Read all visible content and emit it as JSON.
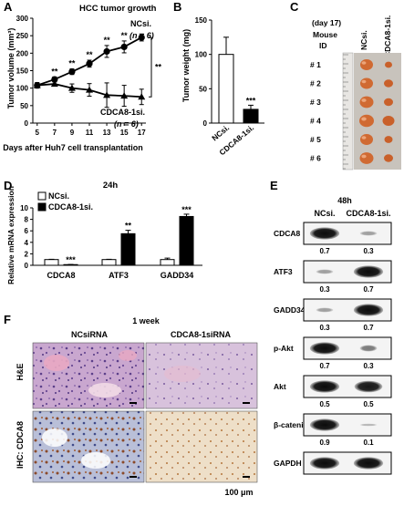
{
  "panels": {
    "A": {
      "letter": "A",
      "chart_data": {
        "type": "line",
        "title": "HCC tumor growth",
        "xlabel": "Days after Huh7 cell transplantation",
        "ylabel": "Tumor volume (mm³)",
        "xlim": [
          4.5,
          17.5
        ],
        "ylim": [
          0,
          300
        ],
        "x_ticks": [
          "5",
          "7",
          "9",
          "11",
          "13",
          "15",
          "17"
        ],
        "y_ticks": [
          "0",
          "50",
          "100",
          "150",
          "200",
          "250",
          "300"
        ],
        "series": [
          {
            "name": "NCsi.",
            "n_label": "(n = 6)",
            "marker": "circle",
            "x": [
              5,
              7,
              9,
              11,
              13,
              15,
              17
            ],
            "y": [
              108,
              125,
              147,
              170,
              205,
              218,
              245
            ],
            "err": [
              5,
              7,
              8,
              10,
              17,
              17,
              10
            ]
          },
          {
            "name": "CDCA8-1si.",
            "n_label": "(n = 6)",
            "marker": "triangle",
            "x": [
              5,
              7,
              9,
              11,
              13,
              15,
              17
            ],
            "y": [
              108,
              112,
              100,
              95,
              80,
              78,
              75
            ],
            "err": [
              8,
              6,
              12,
              18,
              35,
              30,
              22
            ]
          }
        ],
        "annotations": {
          "point_stars": [
            {
              "x": 7,
              "text": "**"
            },
            {
              "x": 9,
              "text": "**"
            },
            {
              "x": 11,
              "text": "**"
            },
            {
              "x": 13,
              "text": "**"
            },
            {
              "x": 15,
              "text": "**"
            }
          ],
          "bracket_text": "**"
        }
      }
    },
    "B": {
      "letter": "B",
      "chart_data": {
        "type": "bar",
        "ylabel": "Tumor weight (mg)",
        "categories": [
          "NCsi.",
          "CDCA8-1si."
        ],
        "values": [
          100,
          20
        ],
        "err": [
          25,
          6
        ],
        "fills": [
          "#ffffff",
          "#000000"
        ],
        "ylim": [
          0,
          150
        ],
        "y_ticks": [
          "0",
          "50",
          "100",
          "150"
        ],
        "significance": [
          "",
          "***"
        ]
      }
    },
    "C": {
      "letter": "C",
      "day_label": "(day 17)",
      "id_label_1": "Mouse",
      "id_label_2": "ID",
      "col_headers": [
        "NCsi.",
        "CDCA8-1si."
      ],
      "rows": [
        "# 1",
        "# 2",
        "# 3",
        "# 4",
        "# 5",
        "# 6"
      ]
    },
    "D": {
      "letter": "D",
      "chart_data": {
        "type": "bar",
        "title": "24h",
        "ylabel": "Relative mRNA expression",
        "categories": [
          "CDCA8",
          "ATF3",
          "GADD34"
        ],
        "series": [
          {
            "name": "NCsi.",
            "fill": "#ffffff",
            "values": [
              1,
              1,
              1
            ],
            "err": [
              0.05,
              0.05,
              0.25
            ]
          },
          {
            "name": "CDCA8-1si.",
            "fill": "#000000",
            "values": [
              0.12,
              5.5,
              8.5
            ],
            "err": [
              0.03,
              0.6,
              0.4
            ]
          }
        ],
        "ylim": [
          0,
          10
        ],
        "y_ticks": [
          "0",
          "2",
          "4",
          "6",
          "8",
          "10"
        ],
        "significance": [
          "***",
          "**",
          "***"
        ]
      }
    },
    "E": {
      "letter": "E",
      "timepoint": "48h",
      "col_headers": [
        "NCsi.",
        "CDCA8-1si."
      ],
      "blots": [
        {
          "label": "CDCA8",
          "values": [
            "0.7",
            "0.3"
          ],
          "bands": [
            0.95,
            0.35
          ]
        },
        {
          "label": "ATF3",
          "values": [
            "0.3",
            "0.7"
          ],
          "bands": [
            0.35,
            0.95
          ]
        },
        {
          "label": "GADD34",
          "values": [
            "0.3",
            "0.7"
          ],
          "bands": [
            0.35,
            0.95
          ]
        },
        {
          "label": "p-Akt",
          "values": [
            "0.7",
            "0.3"
          ],
          "bands": [
            0.95,
            0.5
          ]
        },
        {
          "label": "Akt",
          "values": [
            "0.5",
            "0.5"
          ],
          "bands": [
            0.95,
            0.9
          ]
        },
        {
          "label": "β-catenin",
          "values": [
            "0.9",
            "0.1"
          ],
          "bands": [
            0.95,
            0.2
          ]
        },
        {
          "label": "GAPDH",
          "values": [
            "",
            ""
          ],
          "bands": [
            0.95,
            0.95
          ]
        }
      ]
    },
    "F": {
      "letter": "F",
      "timepoint": "1 week",
      "col_headers": [
        "NCsiRNA",
        "CDCA8-1siRNA"
      ],
      "row_labels": [
        "H&E",
        "IHC: CDCA8"
      ],
      "scale_label": "100 μm"
    }
  }
}
